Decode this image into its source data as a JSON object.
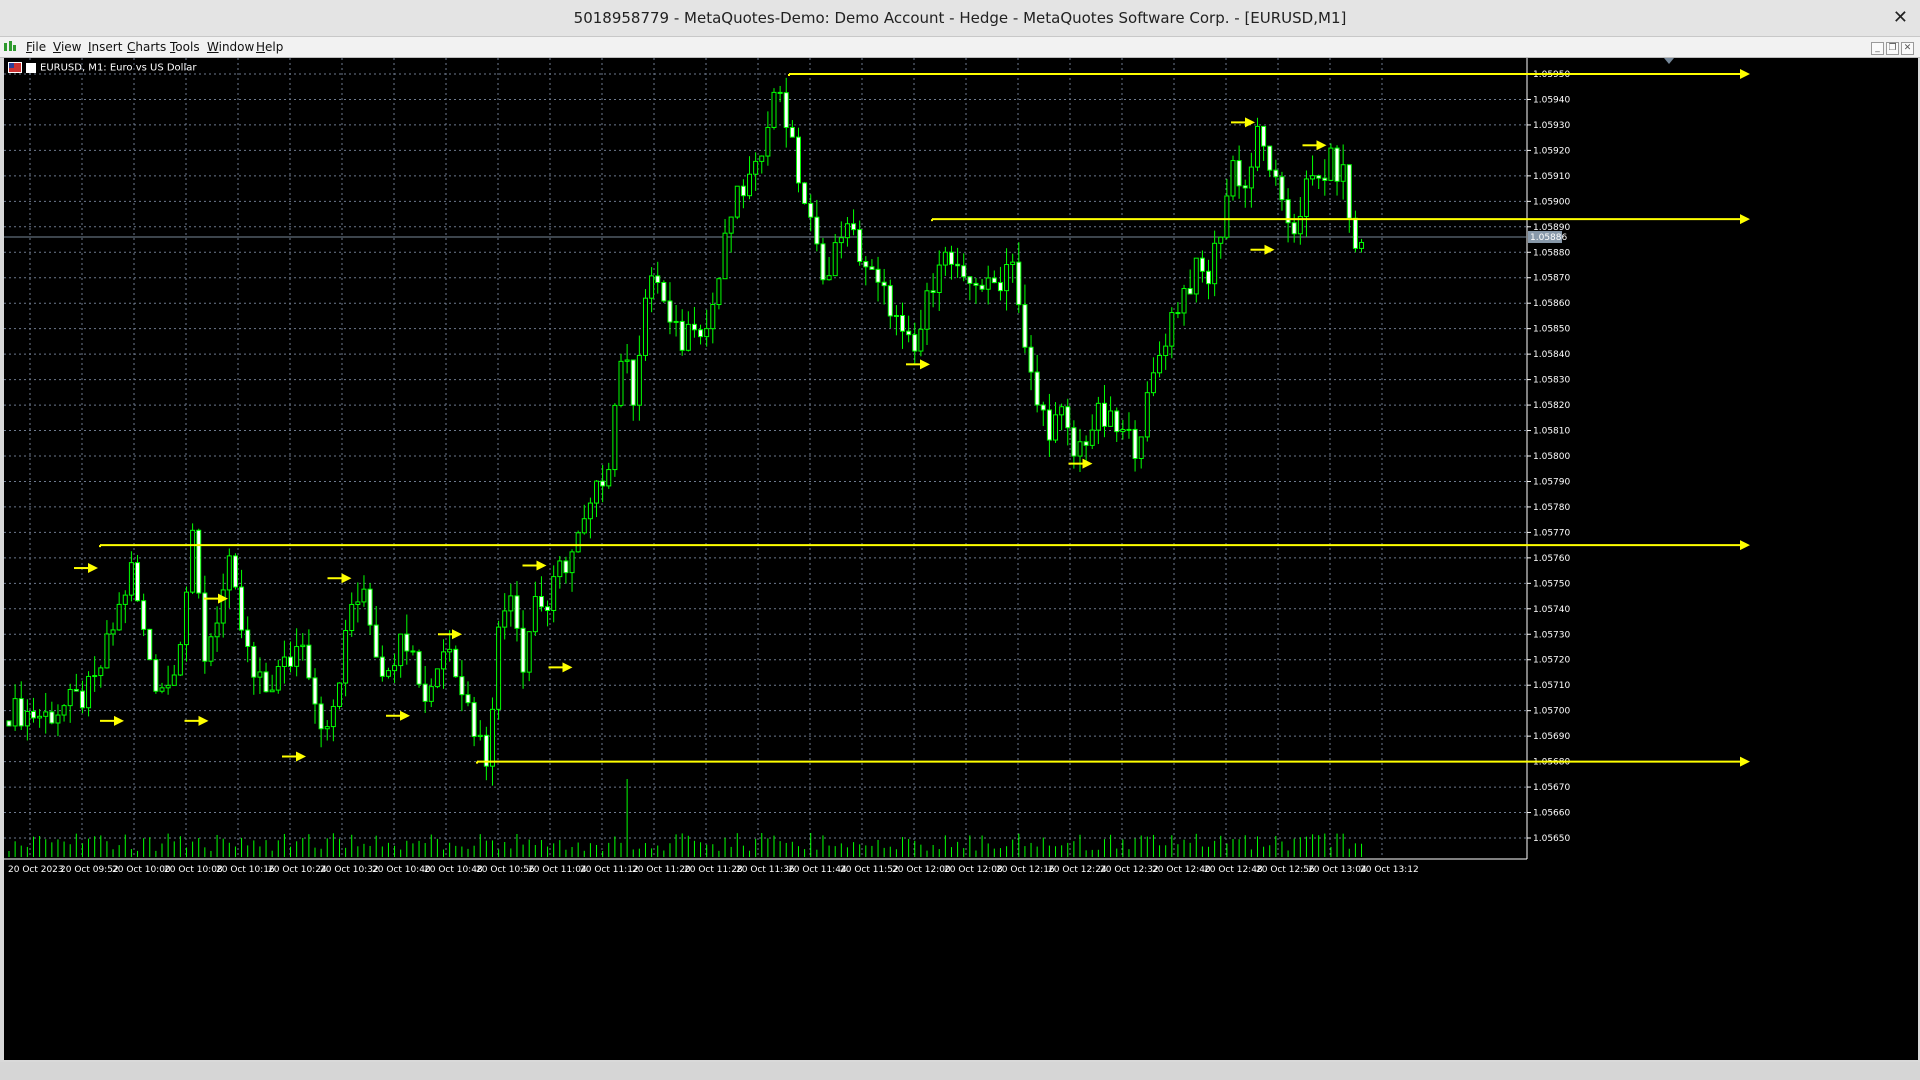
{
  "window": {
    "title": "5018958779 - MetaQuotes-Demo: Demo Account - Hedge - MetaQuotes Software Corp. - [EURUSD,M1]"
  },
  "menu": {
    "items": [
      "File",
      "View",
      "Insert",
      "Charts",
      "Tools",
      "Window",
      "Help"
    ],
    "underline": [
      "F",
      "V",
      "I",
      "C",
      "T",
      "W",
      "H"
    ]
  },
  "chart": {
    "symbol_label": "EURUSD, M1:  Euro vs US Dollar",
    "current_price": "1.05886",
    "colors": {
      "background": "#000000",
      "grid": "#6e7a8e",
      "candle": "#00ff00",
      "bull_body": "#000000",
      "bear_body": "#ffffff",
      "arrows": "#ffff00",
      "axis_text": "#ffffff",
      "volume": "#00ff00"
    }
  },
  "chart_data": {
    "type": "candlestick",
    "title": "",
    "ylim": [
      1.05645,
      1.05955
    ],
    "price_ticks": [
      "1.05950",
      "1.05940",
      "1.05930",
      "1.05920",
      "1.05910",
      "1.05900",
      "1.05890",
      "1.05880",
      "1.05870",
      "1.05860",
      "1.05850",
      "1.05840",
      "1.05830",
      "1.05820",
      "1.05810",
      "1.05800",
      "1.05790",
      "1.05780",
      "1.05770",
      "1.05760",
      "1.05750",
      "1.05740",
      "1.05730",
      "1.05720",
      "1.05710",
      "1.05700",
      "1.05690",
      "1.05680",
      "1.05670",
      "1.05660",
      "1.05650"
    ],
    "time_ticks": [
      "20 Oct 2023",
      "20 Oct 09:52",
      "20 Oct 10:00",
      "20 Oct 10:08",
      "20 Oct 10:16",
      "20 Oct 10:24",
      "20 Oct 10:32",
      "20 Oct 10:40",
      "20 Oct 10:48",
      "20 Oct 10:56",
      "20 Oct 11:04",
      "20 Oct 11:12",
      "20 Oct 11:20",
      "20 Oct 11:28",
      "20 Oct 11:36",
      "20 Oct 11:44",
      "20 Oct 11:52",
      "20 Oct 12:00",
      "20 Oct 12:08",
      "20 Oct 12:16",
      "20 Oct 12:24",
      "20 Oct 12:32",
      "20 Oct 12:40",
      "20 Oct 12:48",
      "20 Oct 12:56",
      "20 Oct 13:04",
      "20 Oct 13:12"
    ],
    "price_keypoints": [
      [
        0,
        1.057
      ],
      [
        6,
        1.05698
      ],
      [
        12,
        1.05705
      ],
      [
        14,
        1.0571
      ],
      [
        18,
        1.0574
      ],
      [
        20,
        1.05755
      ],
      [
        22,
        1.0573
      ],
      [
        24,
        1.05712
      ],
      [
        26,
        1.0571
      ],
      [
        28,
        1.0573
      ],
      [
        30,
        1.05765
      ],
      [
        32,
        1.05722
      ],
      [
        34,
        1.05738
      ],
      [
        36,
        1.05755
      ],
      [
        38,
        1.05732
      ],
      [
        40,
        1.05712
      ],
      [
        42,
        1.05708
      ],
      [
        44,
        1.05715
      ],
      [
        46,
        1.0572
      ],
      [
        48,
        1.0573
      ],
      [
        50,
        1.05705
      ],
      [
        52,
        1.0569
      ],
      [
        54,
        1.05712
      ],
      [
        56,
        1.05742
      ],
      [
        58,
        1.0575
      ],
      [
        60,
        1.05725
      ],
      [
        62,
        1.05712
      ],
      [
        64,
        1.05735
      ],
      [
        66,
        1.05722
      ],
      [
        68,
        1.05705
      ],
      [
        70,
        1.05718
      ],
      [
        72,
        1.05728
      ],
      [
        74,
        1.0571
      ],
      [
        76,
        1.05694
      ],
      [
        78,
        1.05682
      ],
      [
        80,
        1.0573
      ],
      [
        82,
        1.0575
      ],
      [
        84,
        1.0572
      ],
      [
        86,
        1.05745
      ],
      [
        88,
        1.0574
      ],
      [
        90,
        1.05755
      ],
      [
        92,
        1.05762
      ],
      [
        94,
        1.05772
      ],
      [
        96,
        1.05785
      ],
      [
        98,
        1.058
      ],
      [
        100,
        1.0584
      ],
      [
        102,
        1.05825
      ],
      [
        104,
        1.05862
      ],
      [
        106,
        1.0587
      ],
      [
        108,
        1.0585
      ],
      [
        110,
        1.05845
      ],
      [
        112,
        1.05855
      ],
      [
        114,
        1.0585
      ],
      [
        116,
        1.0587
      ],
      [
        118,
        1.05895
      ],
      [
        120,
        1.05905
      ],
      [
        122,
        1.0591
      ],
      [
        124,
        1.05935
      ],
      [
        126,
        1.05945
      ],
      [
        128,
        1.0592
      ],
      [
        130,
        1.059
      ],
      [
        132,
        1.0588
      ],
      [
        134,
        1.0587
      ],
      [
        136,
        1.0589
      ],
      [
        138,
        1.05885
      ],
      [
        140,
        1.05875
      ],
      [
        142,
        1.05865
      ],
      [
        144,
        1.0586
      ],
      [
        146,
        1.05845
      ],
      [
        148,
        1.0584
      ],
      [
        150,
        1.0586
      ],
      [
        152,
        1.0588
      ],
      [
        154,
        1.05875
      ],
      [
        156,
        1.05865
      ],
      [
        158,
        1.0587
      ],
      [
        160,
        1.05865
      ],
      [
        162,
        1.0587
      ],
      [
        164,
        1.0588
      ],
      [
        166,
        1.0584
      ],
      [
        168,
        1.0582
      ],
      [
        170,
        1.05812
      ],
      [
        172,
        1.05815
      ],
      [
        174,
        1.058
      ],
      [
        176,
        1.05808
      ],
      [
        178,
        1.05815
      ],
      [
        180,
        1.05812
      ],
      [
        182,
        1.05808
      ],
      [
        184,
        1.05805
      ],
      [
        186,
        1.0582
      ],
      [
        188,
        1.0584
      ],
      [
        190,
        1.05855
      ],
      [
        192,
        1.05865
      ],
      [
        194,
        1.05872
      ],
      [
        196,
        1.0587
      ],
      [
        198,
        1.0589
      ],
      [
        200,
        1.05915
      ],
      [
        202,
        1.05905
      ],
      [
        204,
        1.05925
      ],
      [
        206,
        1.05915
      ],
      [
        208,
        1.05895
      ],
      [
        210,
        1.0589
      ],
      [
        212,
        1.05905
      ],
      [
        214,
        1.05908
      ],
      [
        216,
        1.05915
      ],
      [
        218,
        1.0591
      ],
      [
        220,
        1.0588
      ],
      [
        221,
        1.05884
      ]
    ],
    "horizontal_lines": [
      {
        "price": 1.0595,
        "from_time": "20 Oct 11:45",
        "direction": "right"
      },
      {
        "price": 1.05893,
        "from_time": "20 Oct 12:07",
        "direction": "right"
      },
      {
        "price": 1.05765,
        "from_time": "20 Oct 09:59",
        "direction": "right"
      },
      {
        "price": 1.0568,
        "from_time": "20 Oct 10:57",
        "direction": "right"
      }
    ],
    "arrow_markers": [
      {
        "time": "20 Oct 09:55",
        "price": 1.05756
      },
      {
        "time": "20 Oct 09:59",
        "price": 1.05696
      },
      {
        "time": "20 Oct 10:12",
        "price": 1.05696
      },
      {
        "time": "20 Oct 10:15",
        "price": 1.05744
      },
      {
        "time": "20 Oct 10:27",
        "price": 1.05682
      },
      {
        "time": "20 Oct 10:34",
        "price": 1.05752
      },
      {
        "time": "20 Oct 10:43",
        "price": 1.05698
      },
      {
        "time": "20 Oct 10:51",
        "price": 1.0573
      },
      {
        "time": "20 Oct 11:04",
        "price": 1.05757
      },
      {
        "time": "20 Oct 11:08",
        "price": 1.05717
      },
      {
        "time": "20 Oct 12:03",
        "price": 1.05836
      },
      {
        "time": "20 Oct 12:28",
        "price": 1.05797
      },
      {
        "time": "20 Oct 12:53",
        "price": 1.05931
      },
      {
        "time": "20 Oct 12:56",
        "price": 1.05881
      },
      {
        "time": "20 Oct 13:04",
        "price": 1.05922
      }
    ],
    "volume_spike": {
      "time": "20 Oct 11:20"
    }
  }
}
